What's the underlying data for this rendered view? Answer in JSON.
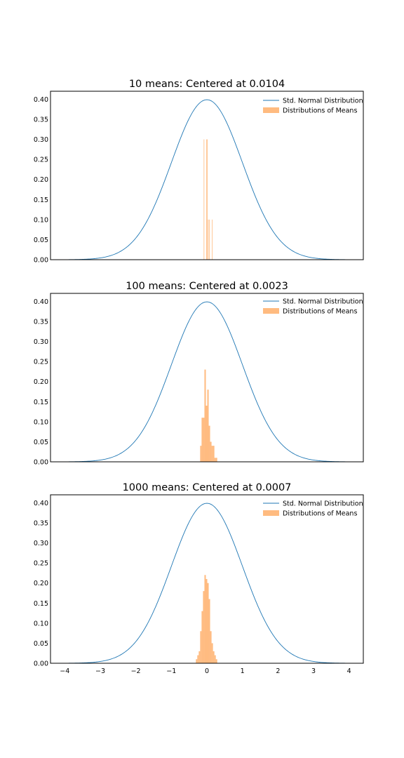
{
  "figure": {
    "colors": {
      "curve": "#1f77b4",
      "hist": "#ffbb80",
      "axes": "#000000"
    }
  },
  "chart_data": [
    {
      "type": "histogram",
      "title": "10 means: Centered at 0.0104",
      "xlim": [
        -4.4,
        4.4
      ],
      "ylim": [
        0,
        0.42
      ],
      "yticks": [
        "0.00",
        "0.05",
        "0.10",
        "0.15",
        "0.20",
        "0.25",
        "0.30",
        "0.35",
        "0.40"
      ],
      "xticks": [],
      "legend_placement": "top-right",
      "grid": false,
      "series": [
        {
          "name": "Std. Normal Distribution",
          "kind": "line",
          "function": "standard-normal-pdf",
          "x_range": [
            -4,
            4
          ]
        },
        {
          "name": "Distributions of Means",
          "kind": "bars",
          "bins": [
            {
              "x0": -0.09,
              "x1": -0.084,
              "value": 0.3
            },
            {
              "x0": -0.015,
              "x1": -0.009,
              "value": 0.3
            },
            {
              "x0": -0.003,
              "x1": 0.003,
              "value": 0.1
            },
            {
              "x0": 0.003,
              "x1": 0.009,
              "value": 0.3
            },
            {
              "x0": 0.036,
              "x1": 0.042,
              "value": 0.1
            },
            {
              "x0": 0.066,
              "x1": 0.072,
              "value": 0.1
            },
            {
              "x0": 0.14,
              "x1": 0.146,
              "value": 0.1
            }
          ]
        }
      ]
    },
    {
      "type": "histogram",
      "title": "100 means: Centered at 0.0023",
      "xlim": [
        -4.4,
        4.4
      ],
      "ylim": [
        0,
        0.42
      ],
      "yticks": [
        "0.00",
        "0.05",
        "0.10",
        "0.15",
        "0.20",
        "0.25",
        "0.30",
        "0.35",
        "0.40"
      ],
      "xticks": [],
      "legend_placement": "top-right",
      "grid": false,
      "series": [
        {
          "name": "Std. Normal Distribution",
          "kind": "line",
          "function": "standard-normal-pdf",
          "x_range": [
            -4,
            4
          ]
        },
        {
          "name": "Distributions of Means",
          "kind": "bars",
          "bins": [
            {
              "x0": -0.19,
              "x1": -0.15,
              "value": 0.04
            },
            {
              "x0": -0.15,
              "x1": -0.11,
              "value": 0.11
            },
            {
              "x0": -0.11,
              "x1": -0.07,
              "value": 0.11
            },
            {
              "x0": -0.07,
              "x1": -0.03,
              "value": 0.23
            },
            {
              "x0": -0.03,
              "x1": 0.01,
              "value": 0.14
            },
            {
              "x0": 0.01,
              "x1": 0.05,
              "value": 0.18
            },
            {
              "x0": 0.05,
              "x1": 0.09,
              "value": 0.09
            },
            {
              "x0": 0.09,
              "x1": 0.13,
              "value": 0.05
            },
            {
              "x0": 0.13,
              "x1": 0.17,
              "value": 0.04
            },
            {
              "x0": 0.17,
              "x1": 0.21,
              "value": 0.04
            },
            {
              "x0": 0.21,
              "x1": 0.25,
              "value": 0.01
            },
            {
              "x0": 0.25,
              "x1": 0.29,
              "value": 0.01
            }
          ]
        }
      ]
    },
    {
      "type": "histogram",
      "title": "1000 means: Centered at 0.0007",
      "xlim": [
        -4.4,
        4.4
      ],
      "ylim": [
        0,
        0.42
      ],
      "yticks": [
        "0.00",
        "0.05",
        "0.10",
        "0.15",
        "0.20",
        "0.25",
        "0.30",
        "0.35",
        "0.40"
      ],
      "xticks": [
        "−4",
        "−3",
        "−2",
        "−1",
        "0",
        "1",
        "2",
        "3",
        "4"
      ],
      "legend_placement": "top-right",
      "grid": false,
      "series": [
        {
          "name": "Std. Normal Distribution",
          "kind": "line",
          "function": "standard-normal-pdf",
          "x_range": [
            -4,
            4
          ]
        },
        {
          "name": "Distributions of Means",
          "kind": "bars",
          "bins": [
            {
              "x0": -0.31,
              "x1": -0.27,
              "value": 0.01
            },
            {
              "x0": -0.27,
              "x1": -0.23,
              "value": 0.02
            },
            {
              "x0": -0.23,
              "x1": -0.19,
              "value": 0.03
            },
            {
              "x0": -0.19,
              "x1": -0.15,
              "value": 0.08
            },
            {
              "x0": -0.15,
              "x1": -0.11,
              "value": 0.13
            },
            {
              "x0": -0.11,
              "x1": -0.07,
              "value": 0.18
            },
            {
              "x0": -0.07,
              "x1": -0.03,
              "value": 0.22
            },
            {
              "x0": -0.03,
              "x1": 0.01,
              "value": 0.21
            },
            {
              "x0": 0.01,
              "x1": 0.05,
              "value": 0.2
            },
            {
              "x0": 0.05,
              "x1": 0.09,
              "value": 0.16
            },
            {
              "x0": 0.09,
              "x1": 0.13,
              "value": 0.08
            },
            {
              "x0": 0.13,
              "x1": 0.17,
              "value": 0.05
            },
            {
              "x0": 0.17,
              "x1": 0.21,
              "value": 0.03
            },
            {
              "x0": 0.21,
              "x1": 0.25,
              "value": 0.02
            },
            {
              "x0": 0.25,
              "x1": 0.29,
              "value": 0.01
            }
          ]
        }
      ]
    }
  ]
}
